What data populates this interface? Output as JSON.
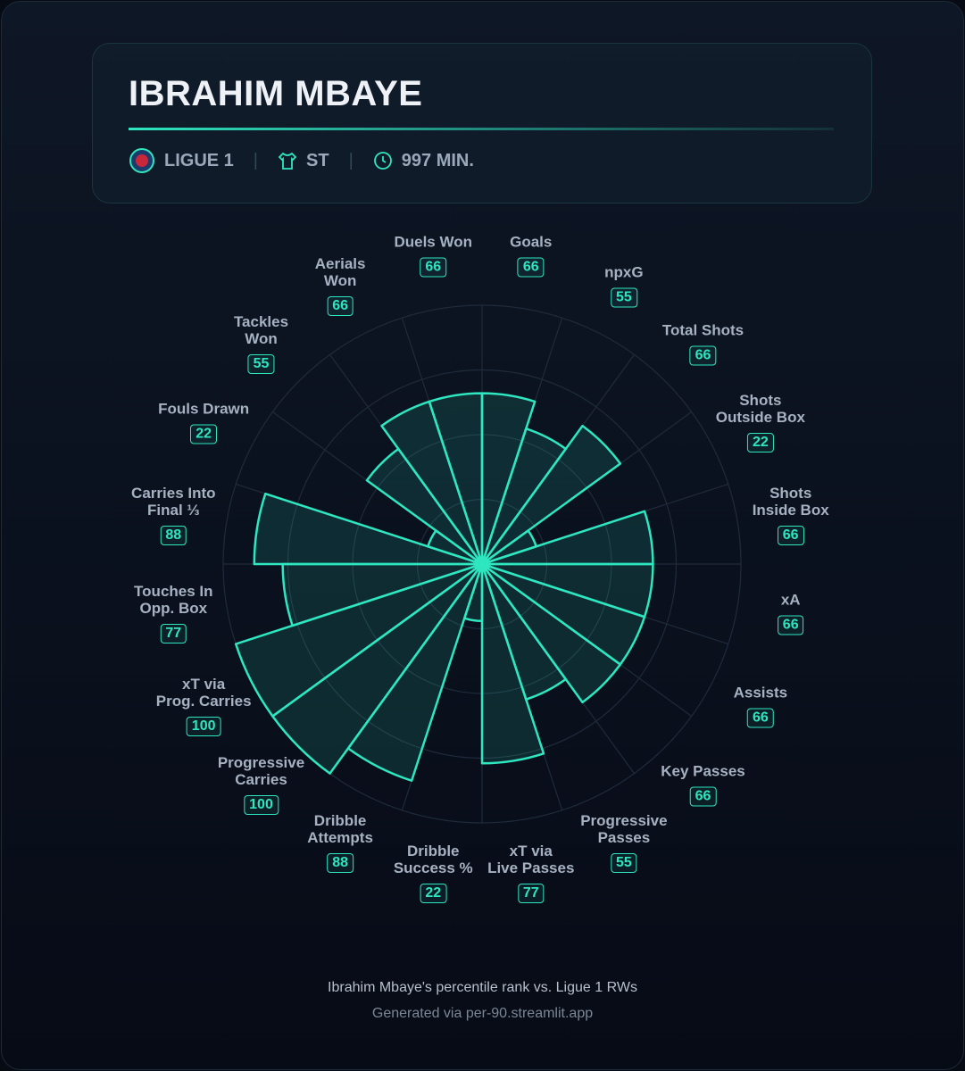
{
  "header": {
    "title": "IBRAHIM MBAYE",
    "league": "LIGUE 1",
    "position": "ST",
    "minutes": "997 MIN."
  },
  "chart_data": {
    "type": "radial-bar",
    "categories": [
      "Goals",
      "npxG",
      "Total Shots",
      "Shots\nOutside Box",
      "Shots\nInside Box",
      "xA",
      "Assists",
      "Key Passes",
      "Progressive\nPasses",
      "xT via\nLive Passes",
      "Dribble\nSuccess %",
      "Dribble\nAttempts",
      "Progressive\nCarries",
      "xT via\nProg. Carries",
      "Touches In\nOpp. Box",
      "Carries Into\nFinal ⅓",
      "Fouls Drawn",
      "Tackles\nWon",
      "Aerials\nWon",
      "Duels Won"
    ],
    "values": [
      66,
      55,
      66,
      22,
      66,
      66,
      66,
      66,
      55,
      77,
      22,
      88,
      100,
      100,
      77,
      88,
      22,
      55,
      66,
      66
    ],
    "color": "#2ee6c0",
    "rlim": [
      0,
      100
    ],
    "rticks": [
      25,
      50,
      75,
      100
    ],
    "grid": true
  },
  "footer": {
    "caption": "Ibrahim Mbaye's percentile rank vs. Ligue 1 RWs",
    "credit": "Generated via per-90.streamlit.app"
  }
}
